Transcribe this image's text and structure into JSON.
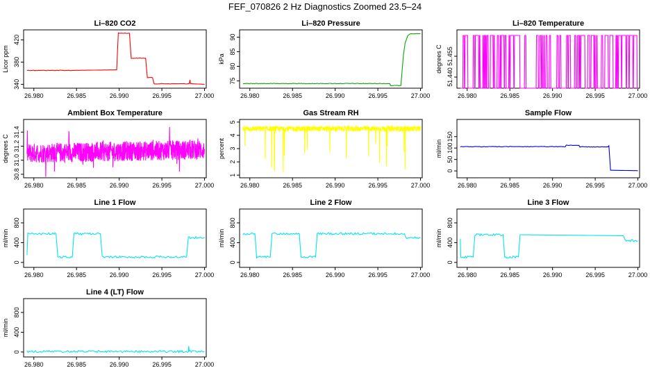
{
  "title": "FEF_070826  2 Hz Diagnostics Zoomed 23.5–24",
  "chart_data": [
    {
      "id": "co2",
      "type": "line",
      "title": "Li–820 CO2",
      "ylabel": "Licor ppm",
      "color": "#ff0000",
      "xlim": [
        26.9788,
        27.0002
      ],
      "ylim": [
        333,
        438
      ],
      "xticks": [
        26.98,
        26.985,
        26.99,
        26.995,
        27.0
      ],
      "xtick_labels": [
        "26.980",
        "26.985",
        "26.990",
        "26.995",
        "27.000"
      ],
      "yticks": [
        340,
        380,
        420
      ],
      "ytick_labels": [
        "340",
        "380",
        "420"
      ],
      "series": [
        {
          "x": [
            26.9792,
            26.9845,
            26.9897,
            26.9899,
            26.9912,
            26.9914,
            26.9931,
            26.9933,
            26.9939,
            26.9941,
            26.9982,
            26.9983,
            26.99835,
            26.9985,
            27.0
          ],
          "y": [
            365,
            365,
            366,
            432,
            432,
            387,
            387,
            352,
            352,
            341,
            341,
            348,
            341,
            341,
            340
          ]
        }
      ]
    },
    {
      "id": "pressure",
      "type": "line",
      "title": "Li–820 Pressure",
      "ylabel": "kPa",
      "color": "#00aa00",
      "xlim": [
        26.9788,
        27.0002
      ],
      "ylim": [
        72.5,
        92.5
      ],
      "xticks": [
        26.98,
        26.985,
        26.99,
        26.995,
        27.0
      ],
      "xtick_labels": [
        "26.980",
        "26.985",
        "26.990",
        "26.995",
        "27.000"
      ],
      "yticks": [
        75,
        80,
        85,
        90
      ],
      "ytick_labels": [
        "75",
        "80",
        "85",
        "90"
      ],
      "series": [
        {
          "x": [
            26.9792,
            26.9964,
            26.9965,
            26.9977,
            26.9978,
            26.998,
            26.9982,
            26.9985,
            26.9988,
            27.0
          ],
          "y": [
            74.1,
            74.1,
            73.4,
            73.4,
            77,
            84,
            88,
            90.5,
            91.2,
            91.2
          ]
        }
      ]
    },
    {
      "id": "temperature",
      "type": "line",
      "title": "Li–820 Temperature",
      "ylabel": "degrees C",
      "color": "#ff00ff",
      "xlim": [
        26.9788,
        27.0002
      ],
      "ylim": [
        51.432,
        51.474
      ],
      "xticks": [
        26.98,
        26.985,
        26.99,
        26.995,
        27.0
      ],
      "xtick_labels": [
        "26.980",
        "26.985",
        "26.990",
        "26.995",
        "27.000"
      ],
      "yticks": [
        51.44,
        51.455
      ],
      "ytick_labels": [
        "51.440",
        "51.455"
      ],
      "series": [
        {
          "x": [
            26.9792,
            27.0
          ],
          "y": [
            51.432,
            51.47
          ],
          "binary": [
            51.432,
            51.47
          ]
        }
      ]
    },
    {
      "id": "ambient",
      "type": "line",
      "title": "Ambient Box Temperature",
      "ylabel": "degrees C",
      "color": "#ff00ff",
      "xlim": [
        26.9788,
        27.0002
      ],
      "ylim": [
        30.75,
        31.58
      ],
      "xticks": [
        26.98,
        26.985,
        26.99,
        26.995,
        27.0
      ],
      "xtick_labels": [
        "26.980",
        "26.985",
        "26.990",
        "26.995",
        "27.000"
      ],
      "yticks": [
        30.8,
        31.0,
        31.2,
        31.4
      ],
      "ytick_labels": [
        "30.8",
        "31.0",
        "31.2",
        "31.4"
      ],
      "series": [
        {
          "x": [
            26.9792,
            27.0
          ],
          "y": [
            31.1,
            31.15
          ],
          "noise": 0.14
        }
      ]
    },
    {
      "id": "rh",
      "type": "line",
      "title": "Gas Stream RH",
      "ylabel": "percent",
      "color": "#ffff00",
      "xlim": [
        26.9788,
        27.0002
      ],
      "ylim": [
        0.8,
        5.2
      ],
      "xticks": [
        26.98,
        26.985,
        26.99,
        26.995,
        27.0
      ],
      "xtick_labels": [
        "26.980",
        "26.985",
        "26.990",
        "26.995",
        "27.000"
      ],
      "yticks": [
        1,
        2,
        3,
        4,
        5
      ],
      "ytick_labels": [
        "1",
        "2",
        "3",
        "4",
        "5"
      ],
      "series": [
        {
          "x": [
            26.9792,
            27.0
          ],
          "y": [
            4.5,
            4.5
          ],
          "noise": 0.2
        }
      ]
    },
    {
      "id": "sample",
      "type": "line",
      "title": "Sample Flow",
      "ylabel": "ml/min",
      "color": "#0000cc",
      "xlim": [
        26.9788,
        27.0002
      ],
      "ylim": [
        -30,
        225
      ],
      "xticks": [
        26.98,
        26.985,
        26.99,
        26.995,
        27.0
      ],
      "xtick_labels": [
        "26.980",
        "26.985",
        "26.990",
        "26.995",
        "27.000"
      ],
      "yticks": [
        0,
        50,
        100,
        150
      ],
      "ytick_labels": [
        "0",
        "50",
        "100",
        "150"
      ],
      "series": [
        {
          "x": [
            26.9792,
            26.9915,
            26.9916,
            26.9931,
            26.9932,
            26.9965,
            26.9966,
            26.9968,
            27.0
          ],
          "y": [
            106,
            106,
            112,
            112,
            105,
            105,
            110,
            3,
            1
          ]
        }
      ]
    },
    {
      "id": "line1",
      "type": "line",
      "title": "Line 1 Flow",
      "ylabel": "ml/min",
      "color": "#00e5ee",
      "xlim": [
        26.9788,
        27.0002
      ],
      "ylim": [
        -100,
        1080
      ],
      "xticks": [
        26.98,
        26.985,
        26.99,
        26.995,
        27.0
      ],
      "xtick_labels": [
        "26.980",
        "26.985",
        "26.990",
        "26.995",
        "27.000"
      ],
      "yticks": [
        0,
        400,
        800
      ],
      "ytick_labels": [
        "0",
        "400",
        "800"
      ],
      "series": [
        {
          "x": [
            26.9792,
            26.9793,
            26.9826,
            26.9828,
            26.9845,
            26.9847,
            26.9878,
            26.988,
            26.9979,
            26.9981,
            27.0
          ],
          "y": [
            150,
            580,
            580,
            110,
            110,
            580,
            580,
            110,
            110,
            500,
            500
          ]
        }
      ]
    },
    {
      "id": "line2",
      "type": "line",
      "title": "Line 2 Flow",
      "ylabel": "ml/min",
      "color": "#00e5ee",
      "xlim": [
        26.9788,
        27.0002
      ],
      "ylim": [
        -100,
        1080
      ],
      "xticks": [
        26.98,
        26.985,
        26.99,
        26.995,
        27.0
      ],
      "xtick_labels": [
        "26.980",
        "26.985",
        "26.990",
        "26.995",
        "27.000"
      ],
      "yticks": [
        0,
        400,
        800
      ],
      "ytick_labels": [
        "0",
        "400",
        "800"
      ],
      "series": [
        {
          "x": [
            26.9792,
            26.9806,
            26.9808,
            26.9824,
            26.9826,
            26.9858,
            26.986,
            26.9877,
            26.9879,
            26.9981,
            26.9983,
            27.0
          ],
          "y": [
            580,
            580,
            110,
            110,
            580,
            580,
            110,
            110,
            580,
            580,
            500,
            500
          ]
        }
      ]
    },
    {
      "id": "line3",
      "type": "line",
      "title": "Line 3 Flow",
      "ylabel": "ml/min",
      "color": "#00e5ee",
      "xlim": [
        26.9788,
        27.0002
      ],
      "ylim": [
        -100,
        1080
      ],
      "xticks": [
        26.98,
        26.985,
        26.99,
        26.995,
        27.0
      ],
      "xtick_labels": [
        "26.980",
        "26.985",
        "26.990",
        "26.995",
        "27.000"
      ],
      "yticks": [
        0,
        400,
        800
      ],
      "ytick_labels": [
        "0",
        "400",
        "800"
      ],
      "series": [
        {
          "x": [
            26.9792,
            26.97925,
            26.9794,
            26.9807,
            26.9809,
            26.9842,
            26.9844,
            26.986,
            26.9862,
            26.9983,
            26.9985,
            27.0
          ],
          "y": [
            480,
            110,
            110,
            110,
            560,
            560,
            110,
            110,
            560,
            540,
            440,
            440
          ]
        }
      ]
    },
    {
      "id": "line4",
      "type": "line",
      "title": "Line 4 (LT) Flow",
      "ylabel": "ml/min",
      "color": "#00e5ee",
      "xlim": [
        26.9788,
        27.0002
      ],
      "ylim": [
        -100,
        1080
      ],
      "xticks": [
        26.98,
        26.985,
        26.99,
        26.995,
        27.0
      ],
      "xtick_labels": [
        "26.980",
        "26.985",
        "26.990",
        "26.995",
        "27.000"
      ],
      "yticks": [
        0,
        400,
        800
      ],
      "ytick_labels": [
        "0",
        "400",
        "800"
      ],
      "series": [
        {
          "x": [
            26.9792,
            26.9981,
            26.99815,
            26.9982,
            26.9983,
            27.0
          ],
          "y": [
            10,
            10,
            120,
            10,
            10,
            10
          ]
        }
      ]
    }
  ]
}
